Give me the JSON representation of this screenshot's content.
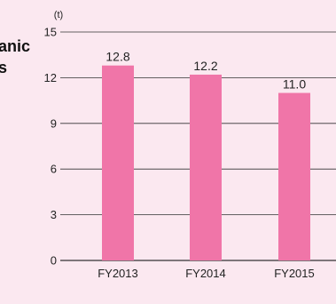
{
  "side_title": {
    "line1": "anic",
    "line2": "s"
  },
  "chart_data": {
    "type": "bar",
    "title": "",
    "xlabel": "",
    "ylabel": "",
    "unit": "(t)",
    "categories": [
      "FY2013",
      "FY2014",
      "FY2015"
    ],
    "values": [
      12.8,
      12.2,
      11.0
    ],
    "value_labels": [
      "12.8",
      "12.2",
      "11.0"
    ],
    "ylim": [
      0,
      15
    ],
    "yticks": [
      0,
      3,
      6,
      9,
      12,
      15
    ],
    "grid": true,
    "legend": "none",
    "colors": {
      "bar": "#f075a8",
      "background": "#fbe8f0",
      "axis": "#333333",
      "grid": "#333333",
      "text": "#222222"
    }
  }
}
